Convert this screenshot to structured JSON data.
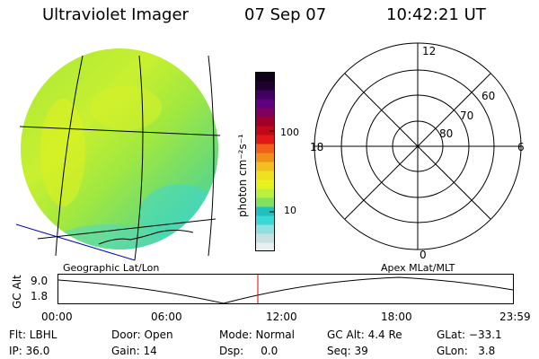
{
  "header": {
    "instrument": "Ultraviolet Imager",
    "date": "07 Sep 07",
    "time": "10:42:21 UT"
  },
  "colorbar": {
    "unit_label": "photon cm⁻²s⁻¹",
    "tick_100": "100",
    "tick_10": "10",
    "colors": [
      "#e8eeee",
      "#c8e0e0",
      "#8ee0e0",
      "#3cd8d8",
      "#20c0c0",
      "#80e060",
      "#b8f040",
      "#e8f020",
      "#f0e020",
      "#f0c020",
      "#f09018",
      "#f06018",
      "#e01818",
      "#c00818",
      "#a00028",
      "#800060",
      "#600080",
      "#400060",
      "#200030",
      "#100018"
    ]
  },
  "polar": {
    "labels": {
      "top": "12",
      "left": "18",
      "right": "6",
      "bottom": "0"
    },
    "rings": [
      "60",
      "70",
      "80"
    ]
  },
  "coords": {
    "left": "Geographic Lat/Lon",
    "right": "Apex MLat/MLT"
  },
  "timeline": {
    "axis_label": "GC Alt",
    "y_max": "9.0",
    "y_min": "1.8",
    "ticks": [
      "00:00",
      "06:00",
      "12:00",
      "18:00",
      "23:59"
    ]
  },
  "status": {
    "flt": "Flt: LBHL",
    "ip": "IP: 36.0",
    "door": "Door: Open",
    "gain": "Gain: 14",
    "mode": "Mode: Normal",
    "dsp": "Dsp:     0.0",
    "gcalt": "GC Alt: 4.4 Re",
    "seq": "Seq: 39",
    "glat": "GLat: −33.1",
    "glon": "GLon:   3.8"
  }
}
